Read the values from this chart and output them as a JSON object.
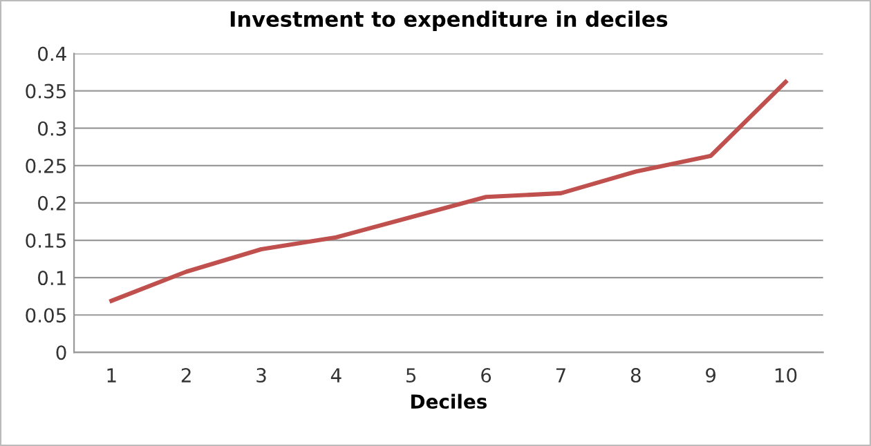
{
  "chart_data": {
    "type": "line",
    "title": "Investment to expenditure in deciles",
    "xlabel": "Deciles",
    "categories": [
      "1",
      "2",
      "3",
      "4",
      "5",
      "6",
      "7",
      "8",
      "9",
      "10"
    ],
    "series": [
      {
        "color": "#c0504d",
        "values": [
          0.069,
          0.108,
          0.138,
          0.154,
          0.181,
          0.208,
          0.213,
          0.242,
          0.263,
          0.362
        ]
      }
    ],
    "ylim": [
      0,
      0.4
    ],
    "yticks": [
      {
        "value": 0,
        "label": "0"
      },
      0.05,
      0.1,
      0.15,
      0.2,
      0.25,
      0.3,
      0.35,
      0.4
    ],
    "grid": "y",
    "line_style": "solid"
  }
}
